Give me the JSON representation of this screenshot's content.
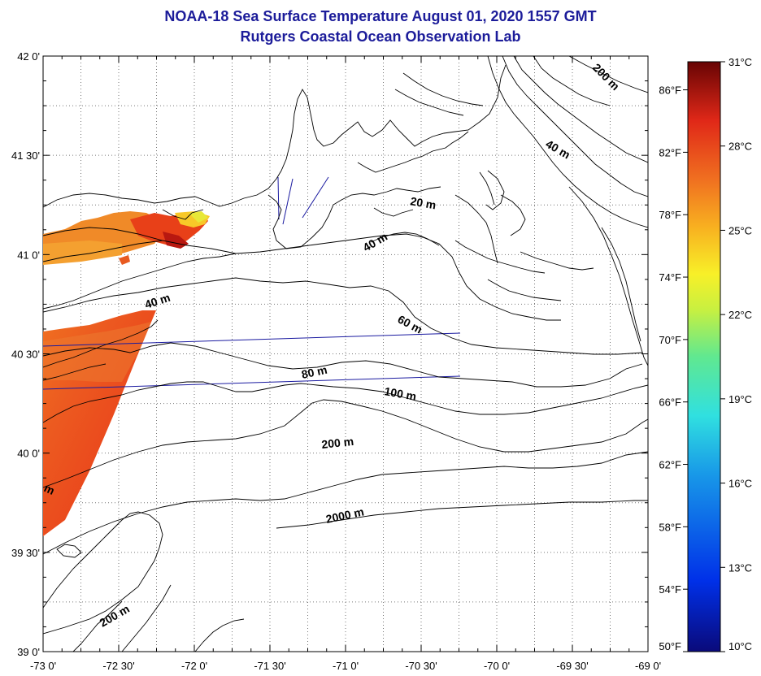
{
  "header": {
    "title": "NOAA-18 Sea Surface Temperature August 01, 2020 1557 GMT",
    "subtitle": "Rutgers Coastal Ocean Observation Lab"
  },
  "map": {
    "lon_range": [
      -73,
      -69
    ],
    "lat_range": [
      39,
      42
    ],
    "lon_ticks": [
      "-73 0'",
      "-72 30'",
      "-72 0'",
      "-71 30'",
      "-71 0'",
      "-70 30'",
      "-70 0'",
      "-69 30'",
      "-69 0'"
    ],
    "lat_ticks": [
      "42 0'",
      "41 30'",
      "41 0'",
      "40 30'",
      "40 0'",
      "39 30'",
      "39 0'"
    ],
    "land_color": "#ffffff",
    "contour_color": "#000000",
    "track_color": "#1a1aa0",
    "contour_labels": [
      "200 m",
      "40 m",
      "20 m",
      "40 m",
      "40 m",
      "60 m",
      "80 m",
      "100 m",
      "200 m",
      "2000 m",
      "200 m",
      "m"
    ]
  },
  "colorbar": {
    "celsius_labels": [
      "31°C",
      "28°C",
      "25°C",
      "22°C",
      "19°C",
      "16°C",
      "13°C",
      "10°C"
    ],
    "fahrenheit_labels": [
      "86°F",
      "82°F",
      "78°F",
      "74°F",
      "70°F",
      "66°F",
      "62°F",
      "58°F",
      "54°F",
      "50°F"
    ],
    "range_c": [
      10,
      31
    ],
    "colors": [
      "#0a0a8a",
      "#0030e0",
      "#1890e8",
      "#30d8e8",
      "#40e0b0",
      "#a0f060",
      "#f0f030",
      "#f8b020",
      "#f07020",
      "#e02818",
      "#a01008",
      "#680404"
    ]
  }
}
